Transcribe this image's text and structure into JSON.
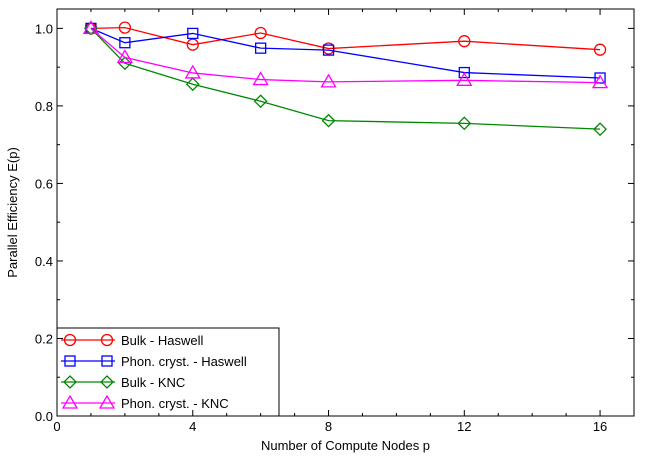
{
  "chart_data": {
    "type": "line",
    "title": "",
    "xlabel": "Number of Compute Nodes p",
    "ylabel": "Parallel Efficiency E(p)",
    "xlim": [
      0,
      17
    ],
    "ylim": [
      0,
      1.05
    ],
    "xticks": [
      0,
      4,
      8,
      12,
      16
    ],
    "xtick_labels": [
      "0",
      "4",
      "8",
      "12",
      "16"
    ],
    "yticks": [
      0,
      0.2,
      0.4,
      0.6,
      0.8,
      1.0
    ],
    "ytick_labels": [
      "0.0",
      "0.2",
      "0.4",
      "0.6",
      "0.8",
      "1.0"
    ],
    "grid": false,
    "legend_position": "bottom-left",
    "series": [
      {
        "name": "Bulk - Haswell",
        "color": "#ff0000",
        "marker": "circle",
        "x": [
          1,
          2,
          4,
          6,
          8,
          12,
          16
        ],
        "y": [
          1.0,
          1.002,
          0.958,
          0.988,
          0.948,
          0.967,
          0.945
        ]
      },
      {
        "name": "Phon. cryst. - Haswell",
        "color": "#0000ff",
        "marker": "square",
        "x": [
          1,
          2,
          4,
          6,
          8,
          12,
          16
        ],
        "y": [
          1.0,
          0.963,
          0.987,
          0.949,
          0.944,
          0.886,
          0.872
        ]
      },
      {
        "name": "Bulk - KNC",
        "color": "#008800",
        "marker": "diamond",
        "x": [
          1,
          2,
          4,
          6,
          8,
          12,
          16
        ],
        "y": [
          1.0,
          0.91,
          0.856,
          0.812,
          0.762,
          0.755,
          0.74
        ]
      },
      {
        "name": "Phon. cryst. - KNC",
        "color": "#ff00ff",
        "marker": "triangle",
        "x": [
          1,
          2,
          4,
          6,
          8,
          12,
          16
        ],
        "y": [
          1.0,
          0.925,
          0.885,
          0.868,
          0.862,
          0.866,
          0.86
        ]
      }
    ]
  }
}
